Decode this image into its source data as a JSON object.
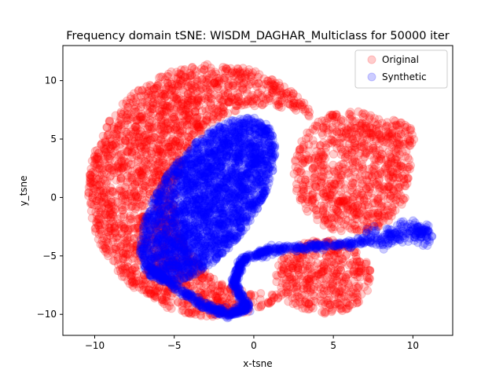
{
  "chart_data": {
    "type": "scatter",
    "title": "Frequency domain tSNE: WISDM_DAGHAR_Multiclass for 50000 iter",
    "xlabel": "x-tsne",
    "ylabel": "y_tsne",
    "xlim": [
      -12,
      12.5
    ],
    "ylim": [
      -11.8,
      13
    ],
    "xticks": [
      -10,
      -5,
      0,
      5,
      10
    ],
    "yticks": [
      -10,
      -5,
      0,
      5,
      10
    ],
    "grid": false,
    "legend_position": "top-right",
    "series": [
      {
        "name": "Original",
        "color": "#ff0000",
        "opacity": 0.2,
        "regions": [
          {
            "description": "left crescent",
            "x_range": [
              -11,
              4.5
            ],
            "y_range": [
              -10.6,
              12
            ]
          },
          {
            "description": "right cluster",
            "x_range": [
              0.5,
              10.5
            ],
            "y_range": [
              -10,
              8.5
            ]
          }
        ]
      },
      {
        "name": "Synthetic",
        "color": "#0000ff",
        "opacity": 0.2,
        "regions": [
          {
            "description": "central ellipse",
            "x_range": [
              -7.5,
              1.8
            ],
            "y_range": [
              -7.5,
              7.2
            ]
          },
          {
            "description": "curved tail",
            "x_range": [
              -2,
              11.2
            ],
            "y_range": [
              -10.4,
              -1.5
            ]
          }
        ]
      }
    ]
  }
}
